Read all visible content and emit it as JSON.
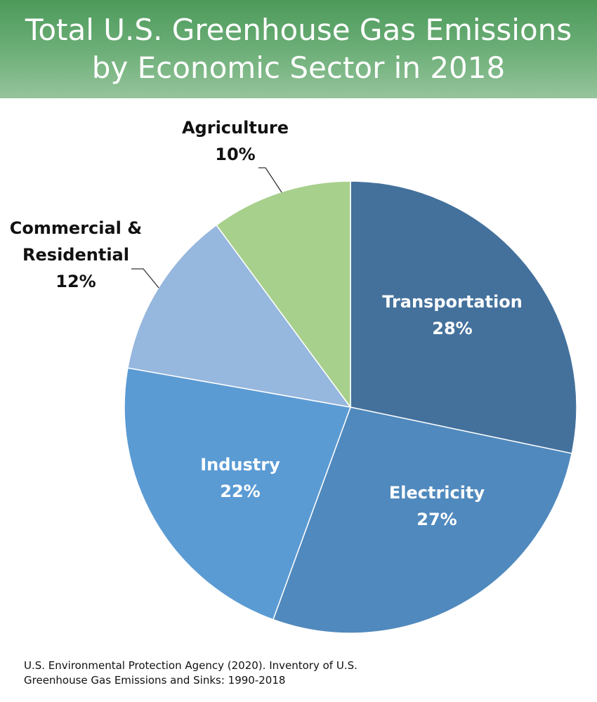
{
  "header": {
    "title_line1": "Total U.S. Greenhouse Gas Emissions",
    "title_line2": "by Economic Sector in 2018"
  },
  "colors": {
    "header_green": "#5aa266",
    "transportation": "#44719c",
    "electricity": "#5089bd",
    "industry": "#5b9bd4",
    "commercial_residential": "#96b7de",
    "agriculture": "#a8d08d"
  },
  "chart_data": {
    "type": "pie",
    "title": "Total U.S. Greenhouse Gas Emissions by Economic Sector in 2018",
    "slices": [
      {
        "label": "Transportation",
        "value": 28,
        "value_label": "28%",
        "color": "#44719c",
        "label_lines": [
          "Transportation"
        ]
      },
      {
        "label": "Electricity",
        "value": 27,
        "value_label": "27%",
        "color": "#5089bd",
        "label_lines": [
          "Electricity"
        ]
      },
      {
        "label": "Industry",
        "value": 22,
        "value_label": "22%",
        "color": "#5b9bd4",
        "label_lines": [
          "Industry"
        ]
      },
      {
        "label": "Commercial & Residential",
        "value": 12,
        "value_label": "12%",
        "color": "#96b7de",
        "label_lines": [
          "Commercial &",
          "Residential"
        ]
      },
      {
        "label": "Agriculture",
        "value": 10,
        "value_label": "10%",
        "color": "#a8d08d",
        "label_lines": [
          "Agriculture"
        ]
      }
    ],
    "start_angle_deg": 0,
    "direction": "clockwise",
    "legend": "none"
  },
  "footer": {
    "source_line1": "U.S. Environmental Protection Agency (2020). Inventory of U.S.",
    "source_line2": "Greenhouse Gas Emissions and Sinks: 1990-2018"
  }
}
